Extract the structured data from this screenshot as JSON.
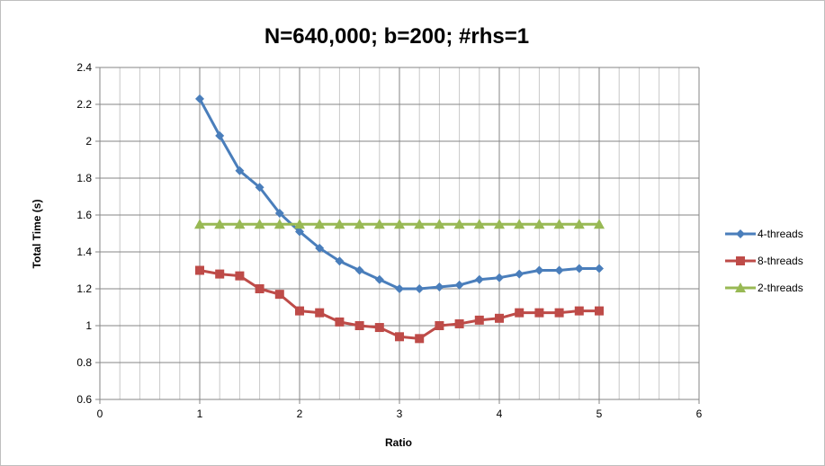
{
  "chart_data": {
    "type": "line",
    "title": "N=640,000; b=200; #rhs=1",
    "xlabel": "Ratio",
    "ylabel": "Total Time (s)",
    "xlim": [
      0,
      6
    ],
    "ylim": [
      0.6,
      2.4
    ],
    "x_ticks": [
      "0",
      "1",
      "2",
      "3",
      "4",
      "5",
      "6"
    ],
    "y_ticks": [
      "0.6",
      "0.8",
      "1",
      "1.2",
      "1.4",
      "1.6",
      "1.8",
      "2",
      "2.2",
      "2.4"
    ],
    "x_tick_values": [
      0,
      1,
      2,
      3,
      4,
      5,
      6
    ],
    "y_tick_values": [
      0.6,
      0.8,
      1.0,
      1.2,
      1.4,
      1.6,
      1.8,
      2.0,
      2.2,
      2.4
    ],
    "x_minor_step": 0.2,
    "grid": true,
    "legend_position": "right",
    "x": [
      1,
      1.2,
      1.4,
      1.6,
      1.8,
      2,
      2.2,
      2.4,
      2.6,
      2.8,
      3,
      3.2,
      3.4,
      3.6,
      3.8,
      4,
      4.2,
      4.4,
      4.6,
      4.8,
      5
    ],
    "series": [
      {
        "name": "4-threads",
        "color": "#4a7ebb",
        "marker": "diamond",
        "values": [
          2.23,
          2.03,
          1.84,
          1.75,
          1.61,
          1.51,
          1.42,
          1.35,
          1.3,
          1.25,
          1.2,
          1.2,
          1.21,
          1.22,
          1.25,
          1.26,
          1.28,
          1.3,
          1.3,
          1.31,
          1.31
        ]
      },
      {
        "name": "8-threads",
        "color": "#be4b48",
        "marker": "square",
        "values": [
          1.3,
          1.28,
          1.27,
          1.2,
          1.17,
          1.08,
          1.07,
          1.02,
          1.0,
          0.99,
          0.94,
          0.93,
          1.0,
          1.01,
          1.03,
          1.04,
          1.07,
          1.07,
          1.07,
          1.08,
          1.08
        ]
      },
      {
        "name": "2-threads",
        "color": "#98b954",
        "marker": "triangle",
        "values": [
          1.55,
          1.55,
          1.55,
          1.55,
          1.55,
          1.55,
          1.55,
          1.55,
          1.55,
          1.55,
          1.55,
          1.55,
          1.55,
          1.55,
          1.55,
          1.55,
          1.55,
          1.55,
          1.55,
          1.55,
          1.55
        ]
      }
    ]
  }
}
